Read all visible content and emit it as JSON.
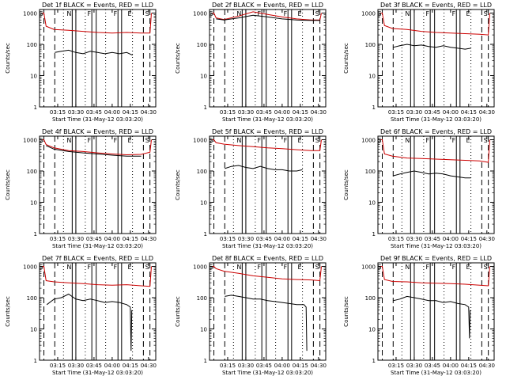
{
  "x_tick_labels": [
    "03:15",
    "03:30",
    "03:45",
    "04:00",
    "04:15",
    "04:30"
  ],
  "x_tick_hours": [
    3.25,
    3.5,
    3.75,
    4.0,
    4.25,
    4.5
  ],
  "y_tick_labels": [
    "1",
    "10",
    "100",
    "1000"
  ],
  "ylabel": "Counts/sec",
  "xlabel": "Start Time (31-May-12 03:03:20)",
  "markers": [
    {
      "hour": 3.06,
      "style": "dashed",
      "label": "S"
    },
    {
      "hour": 3.21,
      "style": "dashed",
      "label": ""
    },
    {
      "hour": 3.33,
      "style": "dotted",
      "label": ""
    },
    {
      "hour": 3.45,
      "style": "solid",
      "label": "N"
    },
    {
      "hour": 3.5,
      "style": "solid",
      "label": ""
    },
    {
      "hour": 3.63,
      "style": "dotted",
      "label": ""
    },
    {
      "hour": 3.72,
      "style": "solid",
      "label": "F"
    },
    {
      "hour": 3.78,
      "style": "solid",
      "label": ""
    },
    {
      "hour": 3.91,
      "style": "dotted",
      "label": ""
    },
    {
      "hour": 4.08,
      "style": "solid",
      "label": "F"
    },
    {
      "hour": 4.13,
      "style": "solid",
      "label": ""
    },
    {
      "hour": 4.28,
      "style": "dotted",
      "label": "E"
    },
    {
      "hour": 4.43,
      "style": "dashed",
      "label": ""
    },
    {
      "hour": 4.52,
      "style": "dashed",
      "label": "S"
    }
  ],
  "chart_data": [
    {
      "type": "line",
      "title": "Det 1f BLACK = Events, RED = LLD",
      "xlim": [
        3.0,
        4.6
      ],
      "ylim": [
        1,
        1300
      ],
      "yscale": "log",
      "series": [
        {
          "color": "#cc0000",
          "x": [
            3.04,
            3.06,
            3.09,
            3.2,
            3.4,
            3.6,
            3.8,
            4.0,
            4.2,
            4.4,
            4.52,
            4.54
          ],
          "y": [
            1000,
            1000,
            380,
            300,
            280,
            260,
            240,
            230,
            240,
            230,
            230,
            1000
          ]
        },
        {
          "color": "#000000",
          "x": [
            3.21,
            3.3,
            3.4,
            3.5,
            3.6,
            3.7,
            3.8,
            3.9,
            4.0,
            4.1,
            4.2,
            4.28
          ],
          "y": [
            55,
            60,
            65,
            55,
            50,
            60,
            55,
            50,
            55,
            50,
            55,
            45
          ]
        }
      ]
    },
    {
      "type": "line",
      "title": "Det 2f BLACK = Events, RED = LLD",
      "xlim": [
        3.0,
        4.6
      ],
      "ylim": [
        1,
        1300
      ],
      "yscale": "log",
      "series": [
        {
          "color": "#cc0000",
          "x": [
            3.04,
            3.06,
            3.09,
            3.2,
            3.4,
            3.6,
            3.8,
            4.0,
            4.2,
            4.4,
            4.52,
            4.54
          ],
          "y": [
            1000,
            1000,
            700,
            620,
            800,
            1100,
            900,
            750,
            650,
            600,
            600,
            1000
          ]
        },
        {
          "color": "#000000",
          "x": [
            3.09,
            3.2,
            3.4,
            3.6,
            3.8,
            4.0,
            4.2,
            4.4,
            4.52
          ],
          "y": [
            650,
            600,
            700,
            850,
            750,
            650,
            600,
            580,
            580
          ]
        }
      ]
    },
    {
      "type": "line",
      "title": "Det 3f BLACK = Events, RED = LLD",
      "xlim": [
        3.0,
        4.6
      ],
      "ylim": [
        1,
        1300
      ],
      "yscale": "log",
      "series": [
        {
          "color": "#cc0000",
          "x": [
            3.04,
            3.06,
            3.09,
            3.2,
            3.4,
            3.6,
            3.8,
            4.0,
            4.2,
            4.4,
            4.52,
            4.54
          ],
          "y": [
            1000,
            1000,
            400,
            320,
            300,
            260,
            240,
            230,
            220,
            210,
            200,
            1000
          ]
        },
        {
          "color": "#000000",
          "x": [
            3.21,
            3.3,
            3.4,
            3.5,
            3.6,
            3.7,
            3.8,
            3.9,
            4.0,
            4.1,
            4.2,
            4.28
          ],
          "y": [
            80,
            90,
            100,
            90,
            95,
            85,
            80,
            90,
            80,
            75,
            70,
            75
          ]
        }
      ]
    },
    {
      "type": "line",
      "title": "Det 4f BLACK = Events, RED = LLD",
      "xlim": [
        3.0,
        4.6
      ],
      "ylim": [
        1,
        1300
      ],
      "yscale": "log",
      "series": [
        {
          "color": "#cc0000",
          "x": [
            3.04,
            3.06,
            3.09,
            3.2,
            3.4,
            3.6,
            3.8,
            4.0,
            4.2,
            4.4,
            4.52,
            4.54
          ],
          "y": [
            1000,
            1000,
            700,
            550,
            450,
            420,
            380,
            350,
            330,
            340,
            400,
            1000
          ]
        },
        {
          "color": "#000000",
          "x": [
            3.09,
            3.2,
            3.4,
            3.6,
            3.8,
            4.0,
            4.2,
            4.4
          ],
          "y": [
            650,
            500,
            420,
            380,
            350,
            320,
            300,
            300
          ]
        }
      ]
    },
    {
      "type": "line",
      "title": "Det 5f BLACK = Events, RED = LLD",
      "xlim": [
        3.0,
        4.6
      ],
      "ylim": [
        1,
        1300
      ],
      "yscale": "log",
      "series": [
        {
          "color": "#cc0000",
          "x": [
            3.04,
            3.06,
            3.09,
            3.2,
            3.4,
            3.6,
            3.8,
            4.0,
            4.2,
            4.4,
            4.52,
            4.54
          ],
          "y": [
            1000,
            1000,
            800,
            720,
            650,
            600,
            550,
            520,
            480,
            450,
            450,
            1000
          ]
        },
        {
          "color": "#000000",
          "x": [
            3.21,
            3.3,
            3.4,
            3.5,
            3.6,
            3.7,
            3.8,
            3.9,
            4.0,
            4.1,
            4.2,
            4.28
          ],
          "y": [
            120,
            140,
            150,
            130,
            120,
            140,
            120,
            110,
            110,
            100,
            100,
            110
          ]
        }
      ]
    },
    {
      "type": "line",
      "title": "Det 6f BLACK = Events, RED = LLD",
      "xlim": [
        3.0,
        4.6
      ],
      "ylim": [
        1,
        1300
      ],
      "yscale": "log",
      "series": [
        {
          "color": "#cc0000",
          "x": [
            3.04,
            3.06,
            3.09,
            3.2,
            3.4,
            3.6,
            3.8,
            4.0,
            4.2,
            4.4,
            4.52,
            4.54
          ],
          "y": [
            1000,
            1000,
            350,
            300,
            260,
            250,
            240,
            230,
            220,
            210,
            190,
            1000
          ]
        },
        {
          "color": "#000000",
          "x": [
            3.21,
            3.3,
            3.4,
            3.5,
            3.6,
            3.7,
            3.8,
            3.9,
            4.0,
            4.1,
            4.2,
            4.28
          ],
          "y": [
            70,
            80,
            90,
            100,
            90,
            80,
            85,
            80,
            70,
            65,
            60,
            60
          ]
        }
      ]
    },
    {
      "type": "line",
      "title": "Det 7f BLACK = Events, RED = LLD",
      "xlim": [
        3.0,
        4.6
      ],
      "ylim": [
        1,
        1300
      ],
      "yscale": "log",
      "series": [
        {
          "color": "#cc0000",
          "x": [
            3.04,
            3.06,
            3.09,
            3.2,
            3.4,
            3.6,
            3.8,
            4.0,
            4.2,
            4.4,
            4.52,
            4.54
          ],
          "y": [
            1000,
            1000,
            350,
            320,
            300,
            280,
            260,
            250,
            260,
            240,
            230,
            1000
          ]
        },
        {
          "color": "#000000",
          "x": [
            3.1,
            3.2,
            3.3,
            3.4,
            3.5,
            3.6,
            3.7,
            3.8,
            3.9,
            4.0,
            4.1,
            4.2,
            4.25,
            4.26,
            4.27
          ],
          "y": [
            60,
            90,
            100,
            130,
            90,
            80,
            90,
            80,
            70,
            75,
            70,
            60,
            50,
            2,
            40
          ]
        }
      ]
    },
    {
      "type": "line",
      "title": "Det 8f BLACK = Events, RED = LLD",
      "xlim": [
        3.0,
        4.6
      ],
      "ylim": [
        1,
        1300
      ],
      "yscale": "log",
      "series": [
        {
          "color": "#cc0000",
          "x": [
            3.04,
            3.06,
            3.09,
            3.2,
            3.4,
            3.6,
            3.8,
            4.0,
            4.2,
            4.4,
            4.52,
            4.54
          ],
          "y": [
            1000,
            1000,
            850,
            700,
            600,
            500,
            450,
            400,
            380,
            370,
            350,
            1000
          ]
        },
        {
          "color": "#000000",
          "x": [
            3.21,
            3.3,
            3.4,
            3.5,
            3.6,
            3.7,
            3.8,
            3.9,
            4.0,
            4.1,
            4.2,
            4.3,
            4.33,
            4.34
          ],
          "y": [
            110,
            120,
            110,
            100,
            90,
            90,
            80,
            75,
            70,
            65,
            60,
            60,
            50,
            2
          ]
        }
      ]
    },
    {
      "type": "line",
      "title": "Det 9f BLACK = Events, RED = LLD",
      "xlim": [
        3.0,
        4.6
      ],
      "ylim": [
        1,
        1300
      ],
      "yscale": "log",
      "series": [
        {
          "color": "#cc0000",
          "x": [
            3.04,
            3.06,
            3.09,
            3.2,
            3.4,
            3.6,
            3.8,
            4.0,
            4.2,
            4.4,
            4.52,
            4.54
          ],
          "y": [
            1000,
            1000,
            380,
            330,
            320,
            300,
            290,
            280,
            270,
            250,
            240,
            1000
          ]
        },
        {
          "color": "#000000",
          "x": [
            3.21,
            3.3,
            3.4,
            3.5,
            3.6,
            3.7,
            3.8,
            3.9,
            4.0,
            4.1,
            4.2,
            4.25,
            4.26,
            4.27
          ],
          "y": [
            80,
            90,
            110,
            100,
            90,
            80,
            80,
            70,
            75,
            65,
            60,
            50,
            5,
            40
          ]
        }
      ]
    }
  ]
}
